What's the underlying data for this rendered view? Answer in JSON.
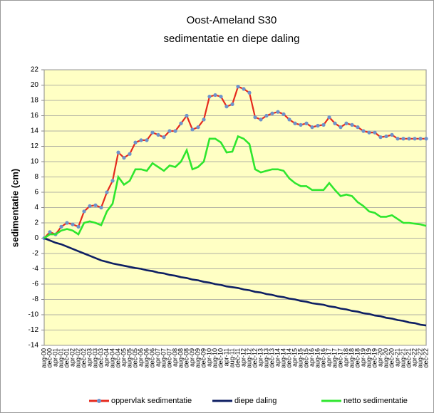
{
  "chart_data": {
    "type": "line",
    "title": "Oost-Ameland S30",
    "subtitle": "sedimentatie en diepe daling",
    "y_label": "sedimentatie (cm)",
    "categories": [
      "aug-00",
      "dec-00",
      "apr-01",
      "aug-01",
      "dec-01",
      "apr-02",
      "aug-02",
      "dec-02",
      "apr-03",
      "aug-03",
      "dec-03",
      "apr-04",
      "aug-04",
      "dec-04",
      "apr-05",
      "aug-05",
      "dec-05",
      "apr-06",
      "aug-06",
      "dec-06",
      "apr-07",
      "aug-07",
      "dec-07",
      "apr-08",
      "aug-08",
      "dec-08",
      "apr-09",
      "aug-09",
      "dec-09",
      "apr-10",
      "aug-10",
      "dec-10",
      "apr-11",
      "aug-11",
      "dec-11",
      "apr-12",
      "aug-12",
      "dec-12",
      "apr-13",
      "aug-13",
      "dec-13",
      "apr-14",
      "aug-14",
      "dec-14",
      "apr-15",
      "aug-15",
      "dec-15",
      "apr-16",
      "aug-16",
      "dec-16",
      "apr-17",
      "aug-17",
      "dec-17",
      "apr-18",
      "aug-18",
      "dec-18",
      "apr-19",
      "aug-19",
      "dec-19",
      "apr-20",
      "aug-20",
      "dec-20",
      "apr-21",
      "aug-21",
      "dec-21",
      "apr-22",
      "aug-22",
      "dec-22"
    ],
    "series": [
      {
        "name": "oppervlak sedimentatie",
        "color": "#e52a1e",
        "marker_color": "#6d93cc",
        "values": [
          0,
          0.8,
          0.5,
          1.5,
          2.0,
          1.8,
          1.5,
          3.5,
          4.2,
          4.3,
          4.0,
          6.0,
          7.5,
          11.2,
          10.5,
          11.0,
          12.5,
          12.8,
          12.8,
          13.8,
          13.5,
          13.2,
          14.0,
          14.0,
          15.0,
          16.0,
          14.2,
          14.5,
          15.5,
          18.5,
          18.7,
          18.5,
          17.2,
          17.5,
          19.8,
          19.5,
          19.0,
          15.8,
          15.5,
          16.0,
          16.3,
          16.5,
          16.2,
          15.5,
          15.0,
          14.8,
          15.0,
          14.5,
          14.7,
          14.8,
          15.8,
          15.0,
          14.5,
          15.0,
          14.8,
          14.5,
          14.0,
          13.8,
          13.8,
          13.2,
          13.3,
          13.5,
          13.0,
          13.0,
          13.0,
          13.0,
          13.0,
          13.0
        ]
      },
      {
        "name": "diepe daling",
        "color": "#0e1f63",
        "values": [
          0,
          -0.3,
          -0.6,
          -0.8,
          -1.1,
          -1.4,
          -1.7,
          -2.0,
          -2.3,
          -2.6,
          -2.9,
          -3.1,
          -3.3,
          -3.45,
          -3.6,
          -3.75,
          -3.9,
          -4.0,
          -4.2,
          -4.3,
          -4.5,
          -4.6,
          -4.8,
          -4.9,
          -5.1,
          -5.2,
          -5.4,
          -5.5,
          -5.7,
          -5.8,
          -6.0,
          -6.1,
          -6.3,
          -6.4,
          -6.5,
          -6.7,
          -6.8,
          -7.0,
          -7.1,
          -7.3,
          -7.4,
          -7.6,
          -7.7,
          -7.9,
          -8.0,
          -8.2,
          -8.3,
          -8.5,
          -8.6,
          -8.7,
          -8.9,
          -9.0,
          -9.2,
          -9.3,
          -9.5,
          -9.6,
          -9.8,
          -9.9,
          -10.1,
          -10.2,
          -10.4,
          -10.5,
          -10.7,
          -10.8,
          -11.0,
          -11.1,
          -11.3,
          -11.4
        ]
      },
      {
        "name": "netto sedimentatie",
        "color": "#2ee62e",
        "values": [
          0,
          0.5,
          0.5,
          1.0,
          1.2,
          1.0,
          0.5,
          2.0,
          2.2,
          2.0,
          1.7,
          3.5,
          4.5,
          8.0,
          7.0,
          7.5,
          9.0,
          9.0,
          8.8,
          9.8,
          9.3,
          8.8,
          9.5,
          9.3,
          10.0,
          11.5,
          9.0,
          9.3,
          10.0,
          13.0,
          13.0,
          12.5,
          11.2,
          11.3,
          13.3,
          13.0,
          12.3,
          9.0,
          8.6,
          8.8,
          9.0,
          9.0,
          8.8,
          7.8,
          7.2,
          6.8,
          6.8,
          6.3,
          6.3,
          6.3,
          7.2,
          6.3,
          5.5,
          5.7,
          5.5,
          4.7,
          4.2,
          3.5,
          3.3,
          2.8,
          2.8,
          3.0,
          2.5,
          2.0,
          2.0,
          1.9,
          1.8,
          1.6
        ]
      }
    ],
    "ylim": [
      -14,
      22
    ],
    "yticks": [
      -14,
      -12,
      -10,
      -8,
      -6,
      -4,
      -2,
      0,
      2,
      4,
      6,
      8,
      10,
      12,
      14,
      16,
      18,
      20,
      22
    ],
    "grid": true,
    "plot_background": "#ffffc4",
    "legend": "bottom"
  }
}
